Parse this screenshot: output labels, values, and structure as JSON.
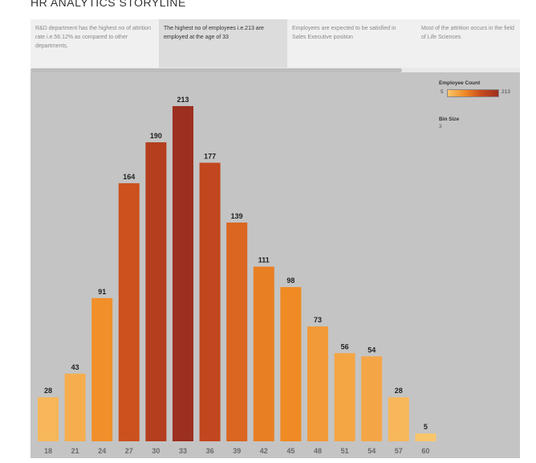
{
  "page": {
    "title": "HR ANALYTICS STORYLINE"
  },
  "story_points": [
    {
      "text": "R&D department has the highest no of attrition rate i.e.56.12% as compared to other departments.",
      "active": false
    },
    {
      "text": "The highest no of employees i.e.213 are employed at the age of 33",
      "active": true
    },
    {
      "text": "Employees are expected to be satisfied in Sales Executive position",
      "active": false
    },
    {
      "text": "Most of the attrition occurs in the field of Life Sciences",
      "active": false
    }
  ],
  "legend": {
    "color_title": "Employee Count",
    "color_min": "5",
    "color_max": "213",
    "bin_title": "Bin Size",
    "bin_value": "3"
  },
  "colors": {
    "background": "#c4c4c4",
    "low": "#f9c56b",
    "mid": "#f08a24",
    "high": "#c84a1e",
    "max": "#9c2f1f"
  },
  "chart_data": {
    "type": "bar",
    "categories": [
      "18",
      "21",
      "24",
      "27",
      "30",
      "33",
      "36",
      "39",
      "42",
      "45",
      "48",
      "51",
      "54",
      "57",
      "60"
    ],
    "values": [
      28,
      43,
      91,
      164,
      190,
      213,
      177,
      139,
      111,
      98,
      73,
      56,
      54,
      28,
      5
    ],
    "data_labels": [
      "28",
      "43",
      "91",
      "164",
      "190",
      "213",
      "177",
      "139",
      "111",
      "98",
      "73",
      "56",
      "54",
      "28",
      "5"
    ],
    "ylim": [
      0,
      213
    ],
    "color_range": [
      5,
      213
    ],
    "grid": false
  }
}
